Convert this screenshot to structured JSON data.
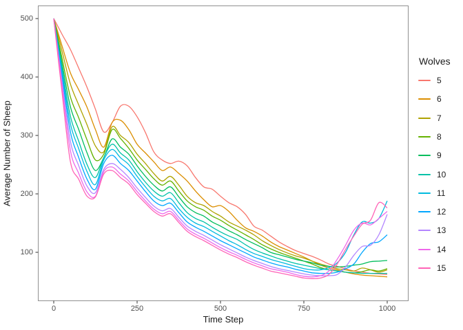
{
  "chart_data": {
    "type": "line",
    "title": "",
    "xlabel": "Time Step",
    "ylabel": "Average Number of Sheep",
    "legend_title": "Wolves",
    "legend_position": "right",
    "grid": false,
    "background": "#FFFFFF",
    "panel_border_color": "#8F8F8F",
    "tick_mark_color": "#333333",
    "axis_text_color": "#4D4D4D",
    "axis_title_color": "#1A1A1A",
    "x_ticks": [
      0,
      250,
      500,
      750,
      1000
    ],
    "y_ticks": [
      100,
      200,
      300,
      400,
      500
    ],
    "xlim": [
      -45,
      1062
    ],
    "ylim": [
      18,
      521
    ],
    "x": [
      0,
      25,
      50,
      75,
      100,
      125,
      150,
      175,
      200,
      225,
      250,
      275,
      300,
      325,
      350,
      375,
      400,
      425,
      450,
      475,
      500,
      525,
      550,
      575,
      600,
      625,
      650,
      675,
      700,
      725,
      750,
      775,
      800,
      825,
      850,
      875,
      900,
      925,
      950,
      975,
      1000
    ],
    "series": [
      {
        "name": "5",
        "color": "#F8766D",
        "values": [
          500,
          473,
          447,
          415,
          382,
          345,
          306,
          322,
          350,
          350,
          332,
          305,
          272,
          258,
          252,
          256,
          248,
          228,
          212,
          208,
          196,
          185,
          178,
          165,
          145,
          138,
          128,
          118,
          110,
          103,
          98,
          93,
          87,
          80,
          76,
          72,
          68,
          66,
          64,
          63,
          62
        ]
      },
      {
        "name": "6",
        "color": "#DB8E00",
        "values": [
          500,
          453,
          407,
          378,
          348,
          310,
          280,
          322,
          326,
          310,
          285,
          270,
          255,
          240,
          246,
          235,
          222,
          205,
          190,
          178,
          180,
          170,
          155,
          142,
          136,
          128,
          118,
          110,
          104,
          98,
          92,
          85,
          78,
          73,
          70,
          66,
          63,
          61,
          60,
          59,
          58
        ]
      },
      {
        "name": "7",
        "color": "#AEA200",
        "values": [
          500,
          444,
          388,
          352,
          318,
          282,
          272,
          315,
          300,
          288,
          268,
          252,
          235,
          222,
          230,
          215,
          196,
          185,
          180,
          170,
          162,
          152,
          145,
          138,
          130,
          120,
          112,
          105,
          99,
          94,
          90,
          85,
          80,
          76,
          72,
          70,
          68,
          73,
          70,
          66,
          70
        ]
      },
      {
        "name": "8",
        "color": "#64B200",
        "values": [
          500,
          432,
          366,
          330,
          292,
          258,
          268,
          310,
          295,
          278,
          258,
          242,
          226,
          215,
          222,
          205,
          188,
          178,
          172,
          162,
          155,
          146,
          138,
          130,
          122,
          113,
          106,
          100,
          95,
          90,
          85,
          80,
          74,
          70,
          68,
          66,
          65,
          67,
          70,
          68,
          72
        ]
      },
      {
        "name": "9",
        "color": "#00BD5C",
        "values": [
          500,
          423,
          349,
          310,
          270,
          240,
          262,
          294,
          280,
          268,
          248,
          230,
          215,
          205,
          212,
          195,
          178,
          168,
          162,
          152,
          145,
          137,
          130,
          122,
          115,
          108,
          100,
          96,
          92,
          88,
          85,
          82,
          78,
          76,
          75,
          76,
          78,
          80,
          84,
          85,
          86
        ]
      },
      {
        "name": "10",
        "color": "#00C1A7",
        "values": [
          500,
          415,
          333,
          290,
          250,
          228,
          262,
          285,
          270,
          258,
          238,
          220,
          205,
          196,
          202,
          185,
          168,
          158,
          152,
          143,
          135,
          128,
          122,
          113,
          105,
          99,
          94,
          89,
          85,
          81,
          78,
          75,
          72,
          70,
          68,
          66,
          65,
          64,
          64,
          64,
          64
        ]
      },
      {
        "name": "11",
        "color": "#00BADE",
        "values": [
          500,
          408,
          320,
          277,
          238,
          216,
          258,
          276,
          262,
          250,
          230,
          212,
          196,
          188,
          192,
          175,
          160,
          150,
          144,
          136,
          128,
          120,
          113,
          105,
          98,
          93,
          88,
          84,
          80,
          76,
          72,
          70,
          70,
          74,
          82,
          100,
          130,
          152,
          150,
          158,
          188
        ]
      },
      {
        "name": "12",
        "color": "#00A6FF",
        "values": [
          500,
          401,
          306,
          262,
          225,
          208,
          252,
          266,
          252,
          240,
          222,
          204,
          188,
          180,
          184,
          168,
          152,
          143,
          136,
          128,
          120,
          113,
          106,
          99,
          92,
          87,
          82,
          78,
          75,
          71,
          68,
          65,
          64,
          64,
          66,
          72,
          80,
          100,
          115,
          118,
          130
        ]
      },
      {
        "name": "13",
        "color": "#B385FF",
        "values": [
          500,
          392,
          290,
          248,
          213,
          202,
          242,
          252,
          242,
          228,
          210,
          194,
          179,
          171,
          175,
          160,
          145,
          136,
          129,
          121,
          113,
          106,
          99,
          92,
          86,
          81,
          76,
          72,
          69,
          66,
          63,
          61,
          60,
          60,
          62,
          75,
          95,
          110,
          112,
          130,
          165
        ]
      },
      {
        "name": "14",
        "color": "#EF67EB",
        "values": [
          500,
          384,
          274,
          235,
          203,
          196,
          238,
          246,
          234,
          222,
          204,
          188,
          174,
          166,
          170,
          155,
          140,
          131,
          124,
          116,
          108,
          101,
          95,
          88,
          82,
          77,
          72,
          69,
          66,
          62,
          59,
          58,
          60,
          68,
          88,
          112,
          138,
          150,
          147,
          158,
          170
        ]
      },
      {
        "name": "15",
        "color": "#FF63B6",
        "values": [
          500,
          373,
          255,
          225,
          196,
          195,
          234,
          240,
          228,
          217,
          199,
          184,
          170,
          162,
          166,
          151,
          136,
          127,
          120,
          112,
          104,
          97,
          91,
          84,
          78,
          73,
          68,
          65,
          62,
          59,
          56,
          55,
          56,
          62,
          80,
          105,
          128,
          148,
          155,
          185,
          176
        ]
      }
    ]
  }
}
